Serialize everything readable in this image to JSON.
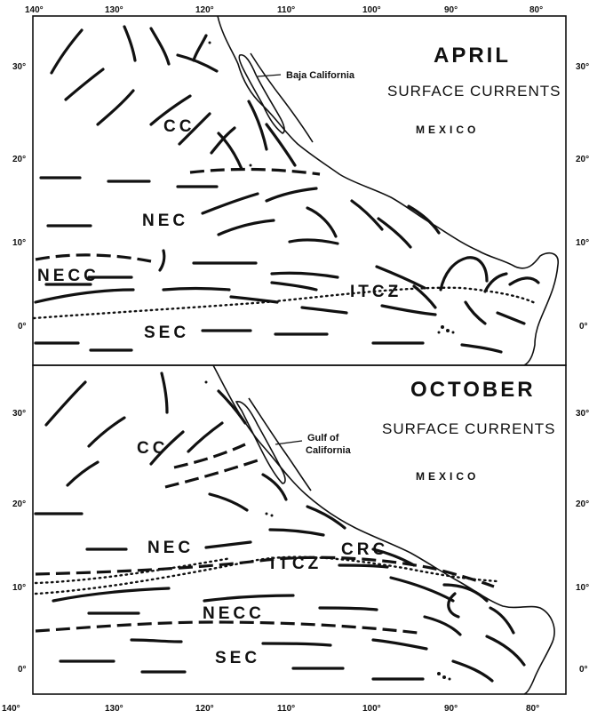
{
  "axis": {
    "longitude_ticks": [
      "140°",
      "130°",
      "120°",
      "110°",
      "100°",
      "90°",
      "80°"
    ],
    "latitude_ticks": [
      "30°",
      "20°",
      "10°",
      "0°"
    ]
  },
  "panels": [
    {
      "title": "APRIL",
      "subtitle": "SURFACE CURRENTS",
      "country": "MEXICO",
      "place_label": "Baja California",
      "currents": {
        "cc": "CC",
        "nec": "NEC",
        "necc": "NECC",
        "sec": "SEC",
        "itcz": "ITCZ"
      }
    },
    {
      "title": "OCTOBER",
      "subtitle": "SURFACE CURRENTS",
      "country": "MEXICO",
      "place_label_line1": "Gulf of",
      "place_label_line2": "California",
      "currents": {
        "cc": "CC",
        "nec": "NEC",
        "crc": "CRC",
        "itcz": "ITCZ",
        "necc": "NECC",
        "sec": "SEC"
      }
    }
  ]
}
